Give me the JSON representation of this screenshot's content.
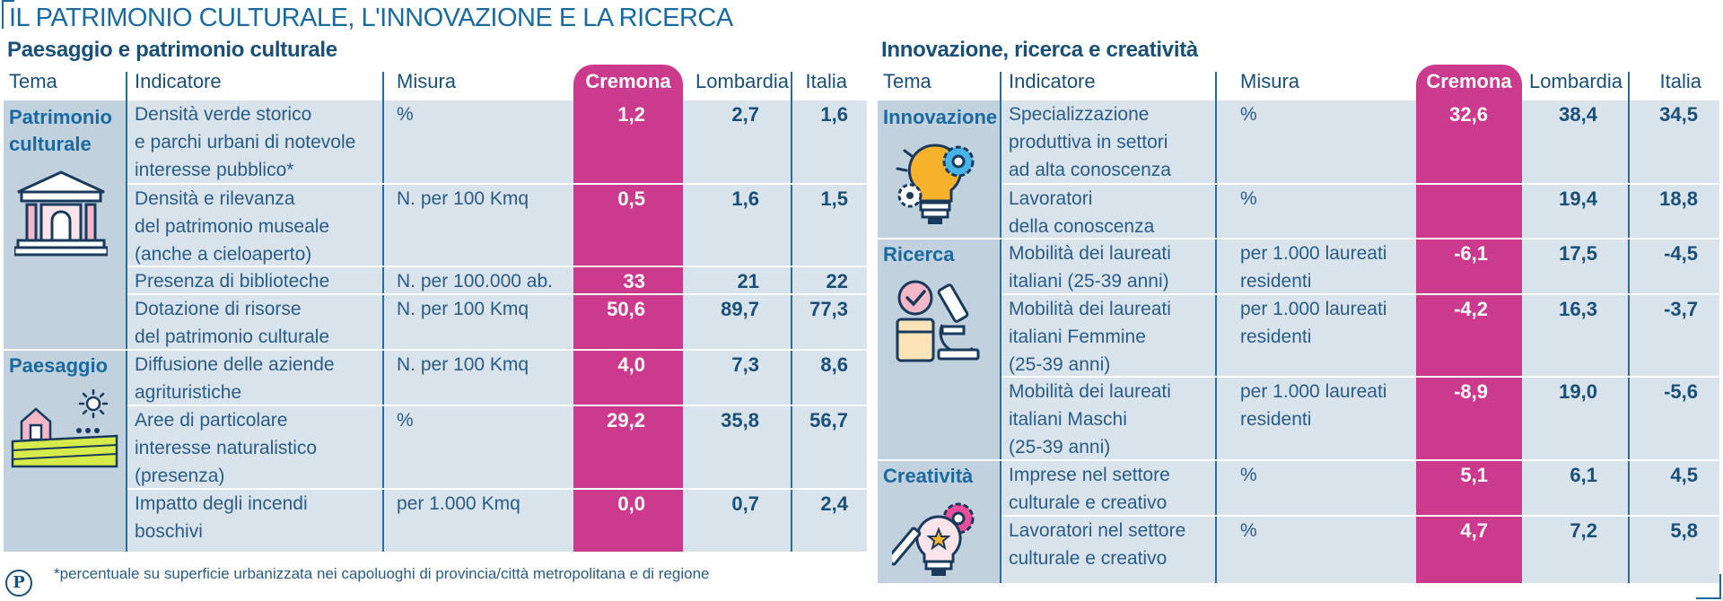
{
  "title": "IL PATRIMONIO CULTURALE, L'INNOVAZIONE E LA RICERCA",
  "footnote": "*percentuale su superficie urbanizzata nei capoluoghi di provincia/città metropolitana e di regione",
  "logo_letter": "P",
  "colors": {
    "accent": "#cc3a8e",
    "band": "#d9e3ec",
    "tema_band": "#c2d1de",
    "text": "#1a4f78"
  },
  "left": {
    "section_title": "Paesaggio e patrimonio culturale",
    "headers": {
      "tema": "Tema",
      "indicatore": "Indicatore",
      "misura": "Misura",
      "cremona": "Cremona",
      "lombardia": "Lombardia",
      "italia": "Italia"
    },
    "groups": [
      {
        "tema": "Patrimonio\nculturale",
        "icon": "museum-icon"
      },
      {
        "tema": "Paesaggio",
        "icon": "farm-landscape-icon"
      }
    ],
    "rows": [
      {
        "indicatore": "Densità verde storico\ne parchi urbani di notevole\ninteresse pubblico*",
        "misura": "%",
        "cremona": "1,2",
        "lombardia": "2,7",
        "italia": "1,6"
      },
      {
        "indicatore": "Densità e rilevanza\ndel patrimonio museale\n(anche a cieloaperto)",
        "misura": "N. per 100 Kmq",
        "cremona": "0,5",
        "lombardia": "1,6",
        "italia": "1,5"
      },
      {
        "indicatore": "Presenza di biblioteche",
        "misura": "N. per 100.000 ab.",
        "cremona": "33",
        "lombardia": "21",
        "italia": "22"
      },
      {
        "indicatore": "Dotazione di risorse\ndel patrimonio culturale",
        "misura": "N. per 100 Kmq",
        "cremona": "50,6",
        "lombardia": "89,7",
        "italia": "77,3"
      },
      {
        "indicatore": "Diffusione delle aziende\nagrituristiche",
        "misura": "N. per 100 Kmq",
        "cremona": "4,0",
        "lombardia": "7,3",
        "italia": "8,6"
      },
      {
        "indicatore": "Aree di particolare\ninteresse naturalistico\n(presenza)",
        "misura": "%",
        "cremona": "29,2",
        "lombardia": "35,8",
        "italia": "56,7"
      },
      {
        "indicatore": "Impatto degli incendi\nboschivi",
        "misura": "per 1.000 Kmq",
        "cremona": "0,0",
        "lombardia": "0,7",
        "italia": "2,4"
      }
    ]
  },
  "right": {
    "section_title": "Innovazione, ricerca e creatività",
    "headers": {
      "tema": "Tema",
      "indicatore": "Indicatore",
      "misura": "Misura",
      "cremona": "Cremona",
      "lombardia": "Lombardia",
      "italia": "Italia"
    },
    "groups": [
      {
        "tema": "Innovazione",
        "icon": "lightbulb-gears-icon"
      },
      {
        "tema": "Ricerca",
        "icon": "microscope-icon"
      },
      {
        "tema": "Creatività",
        "icon": "creative-bulb-icon"
      }
    ],
    "rows": [
      {
        "indicatore": "Specializzazione\nproduttiva in settori\nad alta conoscenza",
        "misura": "%",
        "cremona": "32,6",
        "lombardia": "38,4",
        "italia": "34,5"
      },
      {
        "indicatore": "Lavoratori\ndella conoscenza",
        "misura": "%",
        "cremona": "",
        "lombardia": "19,4",
        "italia": "18,8"
      },
      {
        "indicatore": "Mobilità dei laureati\nitaliani (25-39 anni)",
        "misura": "per 1.000 laureati\nresidenti",
        "cremona": "-6,1",
        "lombardia": "17,5",
        "italia": "-4,5"
      },
      {
        "indicatore": "Mobilità dei laureati\nitaliani Femmine\n(25-39 anni)",
        "misura": "per 1.000 laureati\nresidenti",
        "cremona": "-4,2",
        "lombardia": "16,3",
        "italia": "-3,7"
      },
      {
        "indicatore": "Mobilità dei laureati\nitaliani Maschi\n(25-39 anni)",
        "misura": "per 1.000 laureati\nresidenti",
        "cremona": "-8,9",
        "lombardia": "19,0",
        "italia": "-5,6"
      },
      {
        "indicatore": "Imprese nel settore\nculturale e creativo",
        "misura": "%",
        "cremona": "5,1",
        "lombardia": "6,1",
        "italia": "4,5"
      },
      {
        "indicatore": "Lavoratori nel settore\nculturale e creativo",
        "misura": "%",
        "cremona": "4,7",
        "lombardia": "7,2",
        "italia": "5,8"
      }
    ]
  }
}
